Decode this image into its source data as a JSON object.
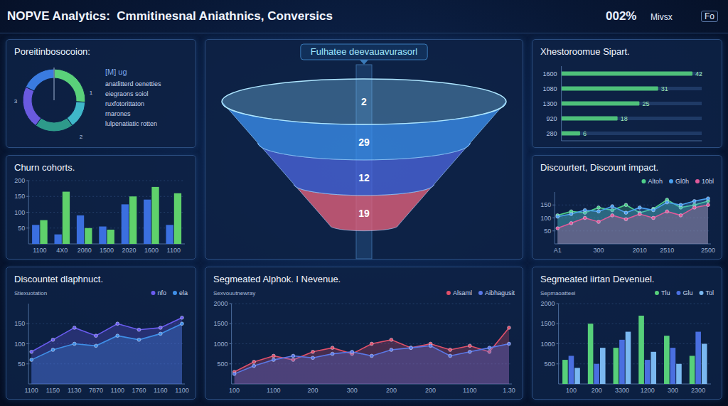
{
  "header": {
    "title": "NOPVE Analytics:  Cmmitinesnal Aniathnics, Conversics",
    "stats": [
      "002%",
      "Mivsx",
      "Fo"
    ]
  },
  "chart_data": [
    {
      "type": "donut",
      "title": "Poreitinbosocoion:",
      "subtitle": "[M] ug",
      "categories": [
        "anatlitterd oenetties",
        "eiegraons soiol",
        "ruxfotorittaton",
        "rnarones",
        "lulpenatiatic rotten"
      ],
      "values": [
        26,
        14,
        20,
        22,
        18
      ],
      "colors": [
        "#5ad07a",
        "#3fb7c9",
        "#2e9a8a",
        "#6a5ae0",
        "#3a7be0"
      ],
      "annotations": [
        "3",
        "2",
        "1"
      ]
    },
    {
      "type": "bar",
      "title": "Churn cohorts.",
      "categories": [
        "1100",
        "4X0",
        "2080",
        "1500",
        "2020",
        "1600",
        "1100"
      ],
      "series": [
        {
          "color": "#3b6fe0",
          "values": [
            60,
            30,
            90,
            55,
            125,
            140,
            60
          ]
        },
        {
          "color": "#5fd16b",
          "values": [
            75,
            165,
            50,
            45,
            150,
            180,
            160
          ]
        }
      ],
      "ylim": [
        0,
        200
      ],
      "yticks": [
        50,
        100,
        150,
        200
      ],
      "grid": true
    },
    {
      "type": "area",
      "title": "Discountet dlaphnuct.",
      "subtitle": "Stiexuotation",
      "categories": [
        "1100",
        "1150",
        "1130",
        "7870",
        "1100",
        "1760",
        "1160",
        "1100"
      ],
      "series": [
        {
          "name": "nfo",
          "color": "#6a5cf0",
          "values": [
            80,
            110,
            140,
            120,
            150,
            135,
            140,
            165
          ]
        },
        {
          "name": "ela",
          "color": "#3f8fe8",
          "values": [
            60,
            85,
            100,
            95,
            120,
            110,
            125,
            150
          ]
        }
      ],
      "ylim": [
        0,
        200
      ],
      "yticks": [
        50,
        100,
        150
      ],
      "grid": true,
      "legend": "top-right",
      "marker": "circle"
    },
    {
      "type": "funnel",
      "title": "Fulhatee deevauavurasorl",
      "values": [
        2,
        29,
        12,
        19
      ],
      "colors": [
        "#7ec8f5",
        "#3a8ce8",
        "#4a64d8",
        "#e0607a"
      ],
      "data_labels": true
    },
    {
      "type": "area",
      "title": "Segmeated Alphok. I Nevenue.",
      "subtitle": "Sexvouutnewray",
      "categories": [
        "100",
        null,
        "1100",
        null,
        "200",
        null,
        "300",
        null,
        "200",
        null,
        "200",
        null,
        "1100",
        null,
        "1.30"
      ],
      "series": [
        {
          "name": "Alsaml",
          "color": "#e0506a",
          "values": [
            300,
            550,
            700,
            600,
            800,
            900,
            750,
            1000,
            1100,
            900,
            1000,
            850,
            950,
            800,
            1400
          ]
        },
        {
          "name": "Aibhagusit",
          "color": "#5a78e8",
          "values": [
            250,
            450,
            600,
            700,
            650,
            750,
            800,
            700,
            850,
            900,
            950,
            700,
            800,
            900,
            1000
          ]
        }
      ],
      "ylim": [
        0,
        2000
      ],
      "yticks": [
        500,
        1000,
        1500,
        2000
      ],
      "grid": true,
      "legend": "top-right",
      "marker": "circle"
    },
    {
      "type": "bar",
      "orientation": "horizontal",
      "title": "Xhestoroomue Sipart.",
      "categories": [
        "1600",
        "1080",
        "1300",
        "920",
        "280"
      ],
      "values": [
        42,
        31,
        25,
        18,
        6
      ],
      "color": "#4ec07a",
      "xlim": [
        0,
        45
      ],
      "tick_labels": "y",
      "data_labels": true
    },
    {
      "type": "area",
      "title": "Discourtert, Discount impact.",
      "categories": [
        "A1",
        null,
        null,
        "300",
        null,
        null,
        "2010",
        null,
        "2510",
        null,
        null,
        "2500"
      ],
      "series": [
        {
          "name": "Altoh",
          "color": "#4ecf8a",
          "values": [
            110,
            125,
            120,
            140,
            130,
            150,
            120,
            135,
            170,
            140,
            150,
            165
          ]
        },
        {
          "name": "Gl0h",
          "color": "#4aa0f0",
          "values": [
            105,
            115,
            130,
            125,
            145,
            120,
            140,
            130,
            160,
            150,
            165,
            175
          ]
        },
        {
          "name": "10bl",
          "color": "#e05a9a",
          "values": [
            60,
            80,
            100,
            85,
            110,
            95,
            115,
            100,
            125,
            110,
            140,
            150
          ]
        }
      ],
      "ylim": [
        0,
        200
      ],
      "yticks": [
        50,
        100,
        150
      ],
      "grid": true,
      "legend": "top-right",
      "marker": "circle"
    },
    {
      "type": "bar",
      "title": "Segmeated iirtan Devenuel.",
      "subtitle": "Sepmaoatteel",
      "categories": [
        "100",
        "200",
        "3300",
        "1200",
        "300",
        "2300"
      ],
      "series": [
        {
          "name": "Tlu",
          "color": "#57d07a",
          "values": [
            600,
            1500,
            900,
            1700,
            1200,
            700
          ]
        },
        {
          "name": "Glu",
          "color": "#4a6fe0",
          "values": [
            700,
            500,
            1100,
            600,
            900,
            1300
          ]
        },
        {
          "name": "Tol",
          "color": "#7ab8f0",
          "values": [
            400,
            900,
            1300,
            800,
            500,
            1000
          ]
        }
      ],
      "ylim": [
        0,
        2000
      ],
      "yticks": [
        500,
        1000,
        1500,
        2000
      ],
      "grid": true,
      "legend": "top-right"
    }
  ]
}
